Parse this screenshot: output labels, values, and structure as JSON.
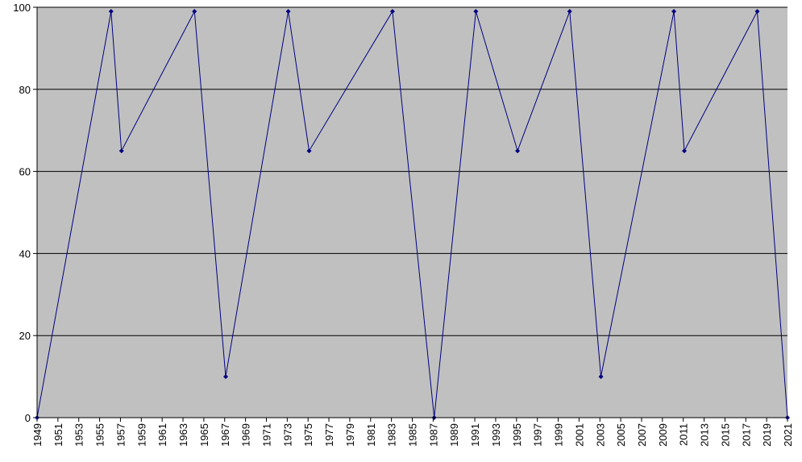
{
  "chart_data": {
    "type": "line",
    "title": "",
    "xlabel": "",
    "ylabel": "",
    "xlim": [
      1949,
      2021
    ],
    "ylim": [
      0,
      100
    ],
    "y_ticks": [
      0,
      20,
      40,
      60,
      80,
      100
    ],
    "y_tick_labels": [
      "0",
      "20",
      "40",
      "60",
      "80",
      "100"
    ],
    "x_ticks": [
      1949,
      1951,
      1953,
      1955,
      1957,
      1959,
      1961,
      1963,
      1965,
      1967,
      1969,
      1971,
      1973,
      1975,
      1977,
      1979,
      1981,
      1983,
      1985,
      1987,
      1989,
      1991,
      1993,
      1995,
      1997,
      1999,
      2001,
      2003,
      2005,
      2007,
      2009,
      2011,
      2013,
      2015,
      2017,
      2019,
      2021
    ],
    "x_tick_labels": [
      "1949",
      "1951",
      "1953",
      "1955",
      "1957",
      "1959",
      "1961",
      "1963",
      "1965",
      "1967",
      "1969",
      "1971",
      "1973",
      "1975",
      "1977",
      "1979",
      "1981",
      "1983",
      "1985",
      "1987",
      "1989",
      "1991",
      "1993",
      "1995",
      "1997",
      "1999",
      "2001",
      "2003",
      "2005",
      "2007",
      "2009",
      "2011",
      "2013",
      "2015",
      "2017",
      "2019",
      "2021"
    ],
    "grid": "horizontal",
    "legend": "none",
    "series": [
      {
        "x": [
          1949,
          1956.1,
          1957.1,
          1964.1,
          1967.1,
          1973.1,
          1975.1,
          1983.1,
          1987.1,
          1991.1,
          1995.1,
          2000.1,
          2003.1,
          2010.1,
          2011.1,
          2018.1,
          2021
        ],
        "values": [
          0,
          99,
          65,
          99,
          10,
          99,
          65,
          99,
          0,
          99,
          65,
          99,
          10,
          99,
          65,
          99,
          0
        ]
      }
    ],
    "colors": {
      "plot_background": "#c0c0c0",
      "gridline": "#000000",
      "series_line": "#000080",
      "marker": "#000080"
    }
  }
}
